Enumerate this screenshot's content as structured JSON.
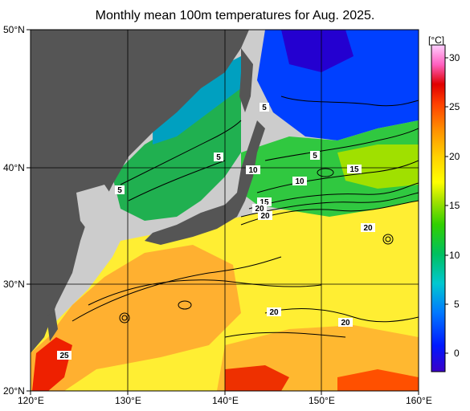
{
  "title": "Monthly mean 100m temperatures for Aug. 2025.",
  "latitude_labels": [
    "50°N",
    "40°N",
    "30°N",
    "20°N"
  ],
  "longitude_labels": [
    "120°E",
    "130°E",
    "140°E",
    "150°E",
    "160°E"
  ],
  "colorbar": {
    "unit": "[°C]",
    "tick_labels": [
      "30",
      "25",
      "20",
      "15",
      "10",
      "5",
      "0"
    ],
    "colors": [
      "#3a00c8",
      "#0018ff",
      "#0078ff",
      "#00c8d0",
      "#00c060",
      "#30d000",
      "#a0e000",
      "#ffff00",
      "#ffd000",
      "#ff9000",
      "#ff4000",
      "#e00000",
      "#ff60c0",
      "#ffd0ff"
    ]
  },
  "contour_labels": [
    "5",
    "5",
    "5",
    "5",
    "10",
    "10",
    "15",
    "15",
    "20",
    "20",
    "20",
    "20",
    "20",
    "25"
  ],
  "colors": {
    "land": "#555555",
    "far_land": "#cccccc",
    "grid": "#000000"
  }
}
